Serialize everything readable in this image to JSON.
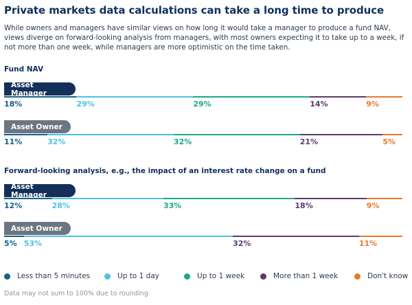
{
  "title": "Private markets data calculations can take a long time to produce",
  "intro": "While owners and managers have similar views on how long it would take a manager to produce a fund NAV, views diverge on forward-looking analysis from managers, with most owners expecting it to take up to a week, if not more than one week, while managers are more optimistic on the time taken.",
  "footnote": "Data may not sum to 100% due to rounding",
  "chart_data": {
    "type": "bar",
    "stacked": true,
    "orientation": "horizontal",
    "unit": "%",
    "categories": [
      "Less than 5 minutes",
      "Up to 1 day",
      "Up to 1 week",
      "More than 1 week",
      "Don't know"
    ],
    "colors": [
      "#14618a",
      "#4fc1e3",
      "#1ba88a",
      "#5b3b6b",
      "#e87a2c"
    ],
    "groups": [
      {
        "title": "Fund NAV",
        "bars": [
          {
            "label": "Asset Manager",
            "kind": "manager",
            "values": [
              18,
              29,
              29,
              14,
              9
            ]
          },
          {
            "label": "Asset Owner",
            "kind": "owner",
            "values": [
              11,
              32,
              32,
              21,
              5
            ]
          }
        ]
      },
      {
        "title": "Forward-looking analysis, e.g., the impact of an interest rate change on a fund",
        "bars": [
          {
            "label": "Asset Manager",
            "kind": "manager",
            "values": [
              12,
              28,
              33,
              18,
              9
            ]
          },
          {
            "label": "Asset Owner",
            "kind": "owner",
            "values": [
              5,
              53,
              0,
              32,
              11
            ]
          }
        ]
      }
    ]
  }
}
